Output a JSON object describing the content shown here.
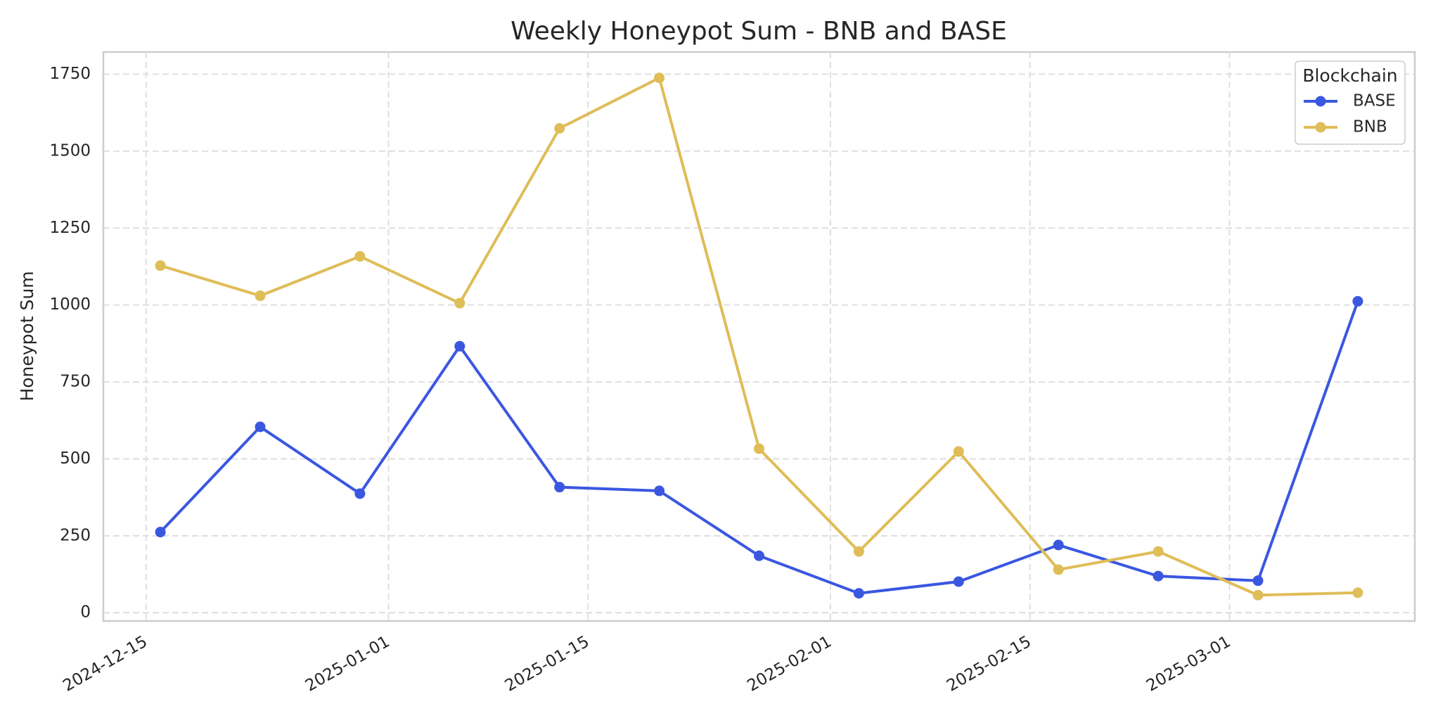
{
  "chart_data": {
    "type": "line",
    "title": "Weekly Honeypot Sum - BNB and BASE",
    "y_label": "Honeypot Sum",
    "x": [
      "2024-12-16",
      "2024-12-23",
      "2024-12-30",
      "2025-01-06",
      "2025-01-13",
      "2025-01-20",
      "2025-01-27",
      "2025-02-03",
      "2025-02-10",
      "2025-02-17",
      "2025-02-24",
      "2025-03-03",
      "2025-03-10"
    ],
    "series": [
      {
        "name": "BASE",
        "color": "#3a57e0",
        "values": [
          262,
          604,
          387,
          866,
          408,
          396,
          185,
          63,
          101,
          220,
          119,
          104,
          1012
        ]
      },
      {
        "name": "BNB",
        "color": "#dfbd57",
        "values": [
          1128,
          1030,
          1158,
          1006,
          1574,
          1738,
          533,
          199,
          524,
          140,
          199,
          57,
          65
        ]
      }
    ],
    "xlim": [
      "2024-12-12",
      "2025-03-14"
    ],
    "xticks": [
      "2024-12-15",
      "2025-01-01",
      "2025-01-15",
      "2025-02-01",
      "2025-02-15",
      "2025-03-01"
    ],
    "ylim": [
      -27,
      1822
    ],
    "yticks": [
      0,
      250,
      500,
      750,
      1000,
      1250,
      1500,
      1750
    ],
    "grid": true,
    "legend_title": "Blockchain",
    "legend_loc": "upper right"
  }
}
